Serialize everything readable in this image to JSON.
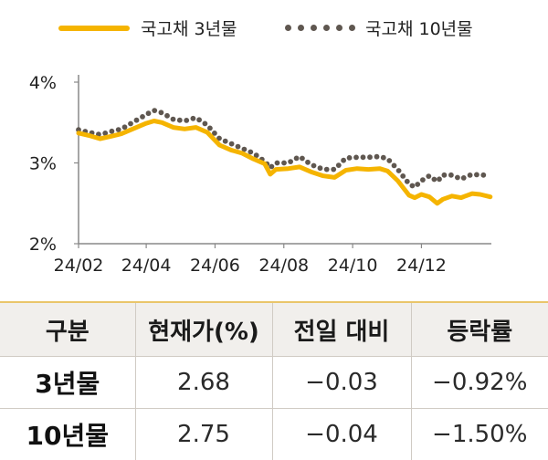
{
  "legend": {
    "series1": "국고채 3년물",
    "series2": "국고채 10년물"
  },
  "colors": {
    "series1": "#F5B400",
    "series2": "#5f5750",
    "axis": "#888888"
  },
  "chart_data": {
    "type": "line",
    "title": "",
    "xlabel": "",
    "ylabel": "",
    "y_ticks": [
      "2%",
      "3%",
      "4%"
    ],
    "x_ticks": [
      "24/02",
      "24/04",
      "24/06",
      "24/08",
      "24/10",
      "24/12"
    ],
    "ylim": [
      2.0,
      4.0
    ],
    "series": [
      {
        "name": "국고채 3년물",
        "style": "solid",
        "points": [
          [
            "2024-02-01",
            3.37
          ],
          [
            "2024-02-10",
            3.34
          ],
          [
            "2024-02-20",
            3.3
          ],
          [
            "2024-03-01",
            3.33
          ],
          [
            "2024-03-10",
            3.36
          ],
          [
            "2024-03-20",
            3.42
          ],
          [
            "2024-04-01",
            3.49
          ],
          [
            "2024-04-08",
            3.52
          ],
          [
            "2024-04-15",
            3.5
          ],
          [
            "2024-04-25",
            3.44
          ],
          [
            "2024-05-05",
            3.42
          ],
          [
            "2024-05-15",
            3.44
          ],
          [
            "2024-05-25",
            3.38
          ],
          [
            "2024-06-05",
            3.22
          ],
          [
            "2024-06-15",
            3.16
          ],
          [
            "2024-06-25",
            3.12
          ],
          [
            "2024-07-05",
            3.05
          ],
          [
            "2024-07-15",
            2.99
          ],
          [
            "2024-07-20",
            2.86
          ],
          [
            "2024-07-25",
            2.92
          ],
          [
            "2024-08-05",
            2.93
          ],
          [
            "2024-08-15",
            2.95
          ],
          [
            "2024-08-25",
            2.89
          ],
          [
            "2024-09-05",
            2.84
          ],
          [
            "2024-09-15",
            2.82
          ],
          [
            "2024-09-25",
            2.91
          ],
          [
            "2024-10-05",
            2.93
          ],
          [
            "2024-10-15",
            2.92
          ],
          [
            "2024-10-25",
            2.93
          ],
          [
            "2024-11-01",
            2.9
          ],
          [
            "2024-11-10",
            2.78
          ],
          [
            "2024-11-20",
            2.6
          ],
          [
            "2024-11-25",
            2.57
          ],
          [
            "2024-12-01",
            2.61
          ],
          [
            "2024-12-08",
            2.58
          ],
          [
            "2024-12-15",
            2.5
          ],
          [
            "2024-12-20",
            2.55
          ],
          [
            "2024-12-28",
            2.59
          ],
          [
            "2025-01-05",
            2.57
          ],
          [
            "2025-01-15",
            2.62
          ],
          [
            "2025-01-22",
            2.61
          ],
          [
            "2025-01-31",
            2.58
          ]
        ]
      },
      {
        "name": "국고채 10년물",
        "style": "dotted",
        "points": [
          [
            "2024-02-01",
            3.41
          ],
          [
            "2024-02-10",
            3.38
          ],
          [
            "2024-02-20",
            3.35
          ],
          [
            "2024-03-01",
            3.39
          ],
          [
            "2024-03-10",
            3.42
          ],
          [
            "2024-03-20",
            3.5
          ],
          [
            "2024-04-01",
            3.6
          ],
          [
            "2024-04-08",
            3.65
          ],
          [
            "2024-04-15",
            3.62
          ],
          [
            "2024-04-25",
            3.54
          ],
          [
            "2024-05-05",
            3.52
          ],
          [
            "2024-05-15",
            3.56
          ],
          [
            "2024-05-25",
            3.47
          ],
          [
            "2024-06-05",
            3.3
          ],
          [
            "2024-06-15",
            3.24
          ],
          [
            "2024-06-25",
            3.18
          ],
          [
            "2024-07-05",
            3.12
          ],
          [
            "2024-07-15",
            3.02
          ],
          [
            "2024-07-20",
            2.94
          ],
          [
            "2024-07-25",
            3.0
          ],
          [
            "2024-08-05",
            3.0
          ],
          [
            "2024-08-15",
            3.08
          ],
          [
            "2024-08-25",
            2.98
          ],
          [
            "2024-09-05",
            2.92
          ],
          [
            "2024-09-15",
            2.92
          ],
          [
            "2024-09-25",
            3.06
          ],
          [
            "2024-10-05",
            3.07
          ],
          [
            "2024-10-15",
            3.07
          ],
          [
            "2024-10-25",
            3.08
          ],
          [
            "2024-11-01",
            3.05
          ],
          [
            "2024-11-10",
            2.92
          ],
          [
            "2024-11-20",
            2.74
          ],
          [
            "2024-11-25",
            2.7
          ],
          [
            "2024-12-01",
            2.78
          ],
          [
            "2024-12-08",
            2.84
          ],
          [
            "2024-12-15",
            2.77
          ],
          [
            "2024-12-20",
            2.85
          ],
          [
            "2024-12-28",
            2.85
          ],
          [
            "2025-01-05",
            2.8
          ],
          [
            "2025-01-15",
            2.86
          ],
          [
            "2025-01-22",
            2.85
          ],
          [
            "2025-01-31",
            2.85
          ]
        ]
      }
    ]
  },
  "table": {
    "headers": [
      "구분",
      "현재가(%)",
      "전일 대비",
      "등락률"
    ],
    "rows": [
      [
        "3년물",
        "2.68",
        "−0.03",
        "−0.92%"
      ],
      [
        "10년물",
        "2.75",
        "−0.04",
        "−1.50%"
      ]
    ]
  }
}
